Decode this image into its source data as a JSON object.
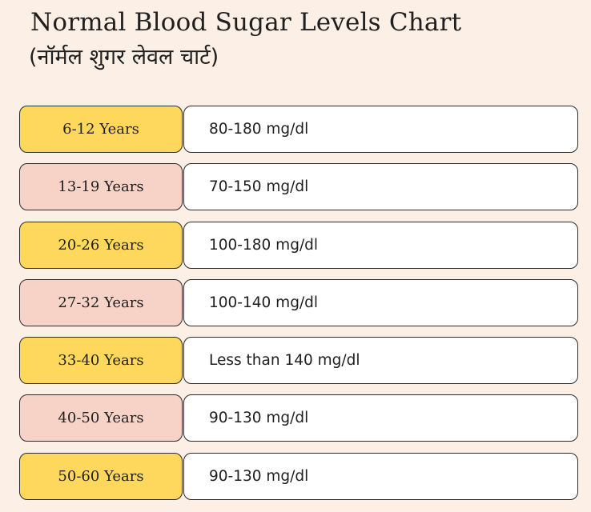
{
  "header": {
    "title": "Normal Blood Sugar Levels Chart",
    "subtitle": "(नॉर्मल शुगर लेवल चार्ट)"
  },
  "colors": {
    "background": "#fcefe5",
    "yellow": "#fdd85c",
    "pink": "#f7d3c7",
    "value_box": "#ffffff"
  },
  "rows": [
    {
      "age": "6-12 Years",
      "level": "80-180 mg/dl",
      "color": "yellow"
    },
    {
      "age": "13-19 Years",
      "level": "70-150 mg/dl",
      "color": "pink"
    },
    {
      "age": "20-26 Years",
      "level": "100-180 mg/dl",
      "color": "yellow"
    },
    {
      "age": "27-32 Years",
      "level": "100-140 mg/dl",
      "color": "pink"
    },
    {
      "age": "33-40 Years",
      "level": "Less than 140 mg/dl",
      "color": "yellow"
    },
    {
      "age": "40-50 Years",
      "level": "90-130 mg/dl",
      "color": "pink"
    },
    {
      "age": "50-60 Years",
      "level": "90-130 mg/dl",
      "color": "yellow"
    }
  ]
}
